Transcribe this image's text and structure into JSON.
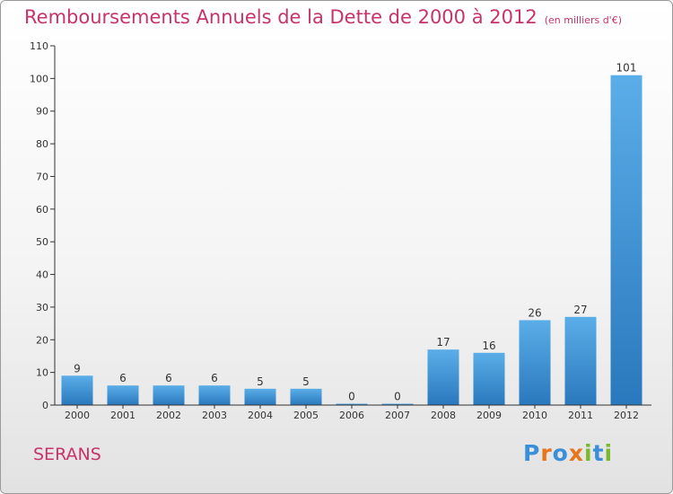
{
  "title": "Remboursements Annuels de la Dette de 2000 à 2012",
  "unit_note": "(en milliers d'€)",
  "location": "SERANS",
  "logo": {
    "text": "Proxiti",
    "letters": [
      {
        "ch": "P",
        "color": "#3a8fd8"
      },
      {
        "ch": "r",
        "color": "#e8751a"
      },
      {
        "ch": "o",
        "color": "#3a8fd8"
      },
      {
        "ch": "x",
        "color": "#e8751a"
      },
      {
        "ch": "i",
        "color": "#7cb82f"
      },
      {
        "ch": "t",
        "color": "#3a8fd8"
      },
      {
        "ch": "i",
        "color": "#7cb82f"
      }
    ]
  },
  "colors": {
    "title": "#c8336a",
    "bar_light": "#5aaee8",
    "bar_dark": "#2a78bd",
    "axis": "#333333"
  },
  "chart_data": {
    "type": "bar",
    "categories": [
      "2000",
      "2001",
      "2002",
      "2003",
      "2004",
      "2005",
      "2006",
      "2007",
      "2008",
      "2009",
      "2010",
      "2011",
      "2012"
    ],
    "values": [
      9,
      6,
      6,
      6,
      5,
      5,
      0,
      0,
      17,
      16,
      26,
      27,
      101
    ],
    "ylim": [
      0,
      110
    ],
    "yticks": [
      0,
      10,
      20,
      30,
      40,
      50,
      60,
      70,
      80,
      90,
      100,
      110
    ],
    "grid": false,
    "data_labels": true
  }
}
